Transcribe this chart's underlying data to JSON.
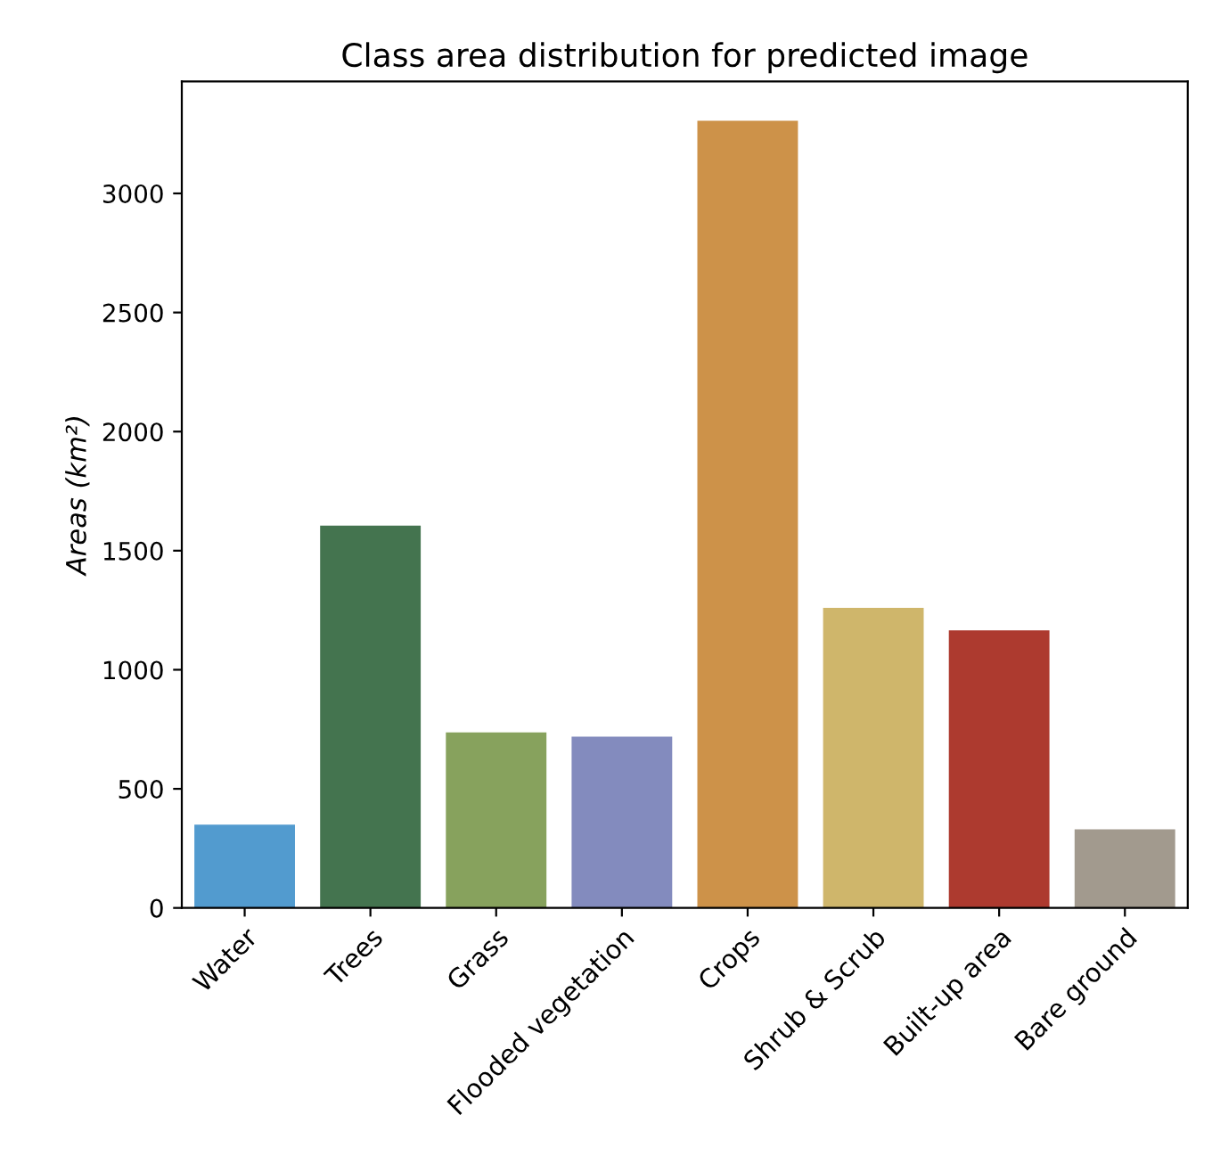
{
  "chart_data": {
    "type": "bar",
    "title": "Class area distribution for predicted image",
    "ylabel": "Areas (km²)",
    "categories": [
      "Water",
      "Trees",
      "Grass",
      "Flooded vegetation",
      "Crops",
      "Shrub & Scrub",
      "Built-up area",
      "Bare ground"
    ],
    "values": [
      350,
      1605,
      737,
      719,
      3305,
      1260,
      1165,
      330
    ],
    "colors": [
      "#529bcf",
      "#44744f",
      "#87a25d",
      "#838bbe",
      "#cd9249",
      "#cfb66b",
      "#ad3a2f",
      "#a29a8e"
    ],
    "ylim": [
      0,
      3470
    ],
    "yticks": [
      0,
      500,
      1000,
      1500,
      2000,
      2500,
      3000
    ],
    "grid": false
  }
}
